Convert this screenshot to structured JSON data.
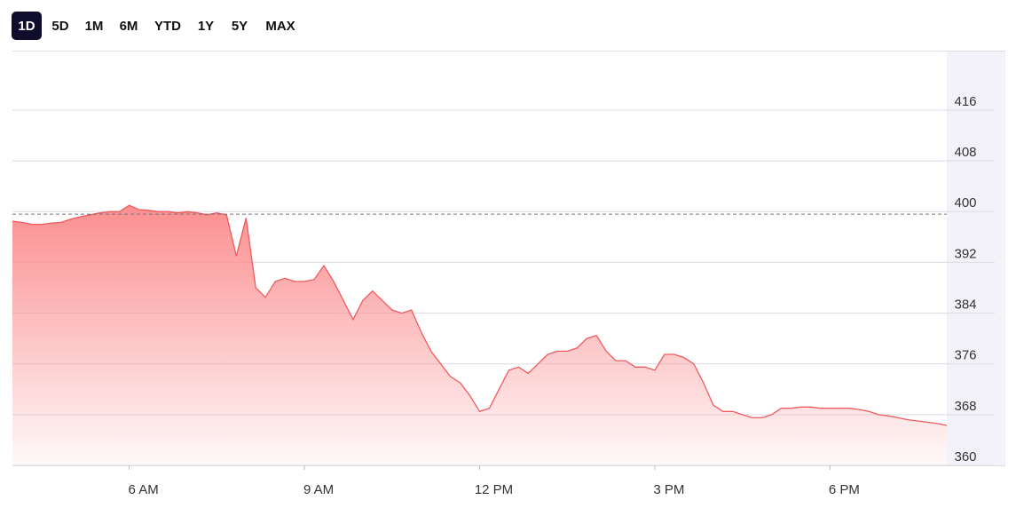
{
  "range_buttons": [
    "1D",
    "5D",
    "1M",
    "6M",
    "YTD",
    "1Y",
    "5Y",
    "MAX"
  ],
  "active_range": "1D",
  "chart_data": {
    "type": "area",
    "color": "#ef5b5f",
    "fill_color": "#fb8e90",
    "x": [
      240,
      250,
      260,
      270,
      280,
      290,
      300,
      310,
      320,
      330,
      340,
      350,
      360,
      370,
      380,
      390,
      400,
      410,
      420,
      430,
      440,
      450,
      460,
      470,
      480,
      490,
      500,
      510,
      520,
      530,
      540,
      550,
      560,
      570,
      580,
      590,
      600,
      610,
      620,
      630,
      640,
      650,
      660,
      670,
      680,
      690,
      700,
      710,
      720,
      730,
      740,
      750,
      760,
      770,
      780,
      790,
      800,
      810,
      820,
      830,
      840,
      850,
      860,
      870,
      880,
      890,
      900,
      910,
      920,
      930,
      940,
      950,
      960,
      970,
      980,
      990,
      1000,
      1010,
      1020,
      1030,
      1040,
      1050,
      1060,
      1070,
      1080,
      1090,
      1100,
      1110,
      1120,
      1130,
      1140,
      1150,
      1160,
      1170,
      1180,
      1190,
      1200
    ],
    "values": [
      398.5,
      398.3,
      398,
      398,
      398.2,
      398.3,
      398.8,
      399.2,
      399.5,
      399.8,
      400,
      400,
      401,
      400.3,
      400.2,
      400,
      400,
      399.8,
      400,
      399.8,
      399.5,
      399.8,
      399.5,
      393,
      399,
      388,
      386.5,
      389,
      389.5,
      389,
      389,
      389.3,
      391.5,
      389,
      386,
      383,
      386,
      387.5,
      386,
      384.5,
      384,
      384.5,
      381,
      378,
      376,
      374,
      373,
      371,
      368.5,
      369,
      372,
      375,
      375.5,
      374.5,
      376,
      377.5,
      378,
      378,
      378.5,
      380,
      380.5,
      378,
      376.5,
      376.5,
      375.5,
      375.5,
      375,
      377.5,
      377.5,
      377,
      376,
      373,
      369.5,
      368.5,
      368.5,
      368,
      367.5,
      367.5,
      368,
      369,
      369,
      369.2,
      369.2,
      369,
      369,
      369,
      369,
      368.8,
      368.5,
      368,
      367.8,
      367.5,
      367.2,
      367,
      366.8,
      366.6,
      366.3
    ],
    "reference_line": 399.6,
    "xlim": [
      240,
      1200
    ],
    "xticks": [
      {
        "value": 360,
        "label": "6 AM"
      },
      {
        "value": 540,
        "label": "9 AM"
      },
      {
        "value": 720,
        "label": "12 PM"
      },
      {
        "value": 900,
        "label": "3 PM"
      },
      {
        "value": 1080,
        "label": "6 PM"
      }
    ],
    "ylim": [
      360,
      425
    ],
    "yticks": [
      360,
      368,
      376,
      384,
      392,
      400,
      408,
      416
    ],
    "grid": true
  }
}
